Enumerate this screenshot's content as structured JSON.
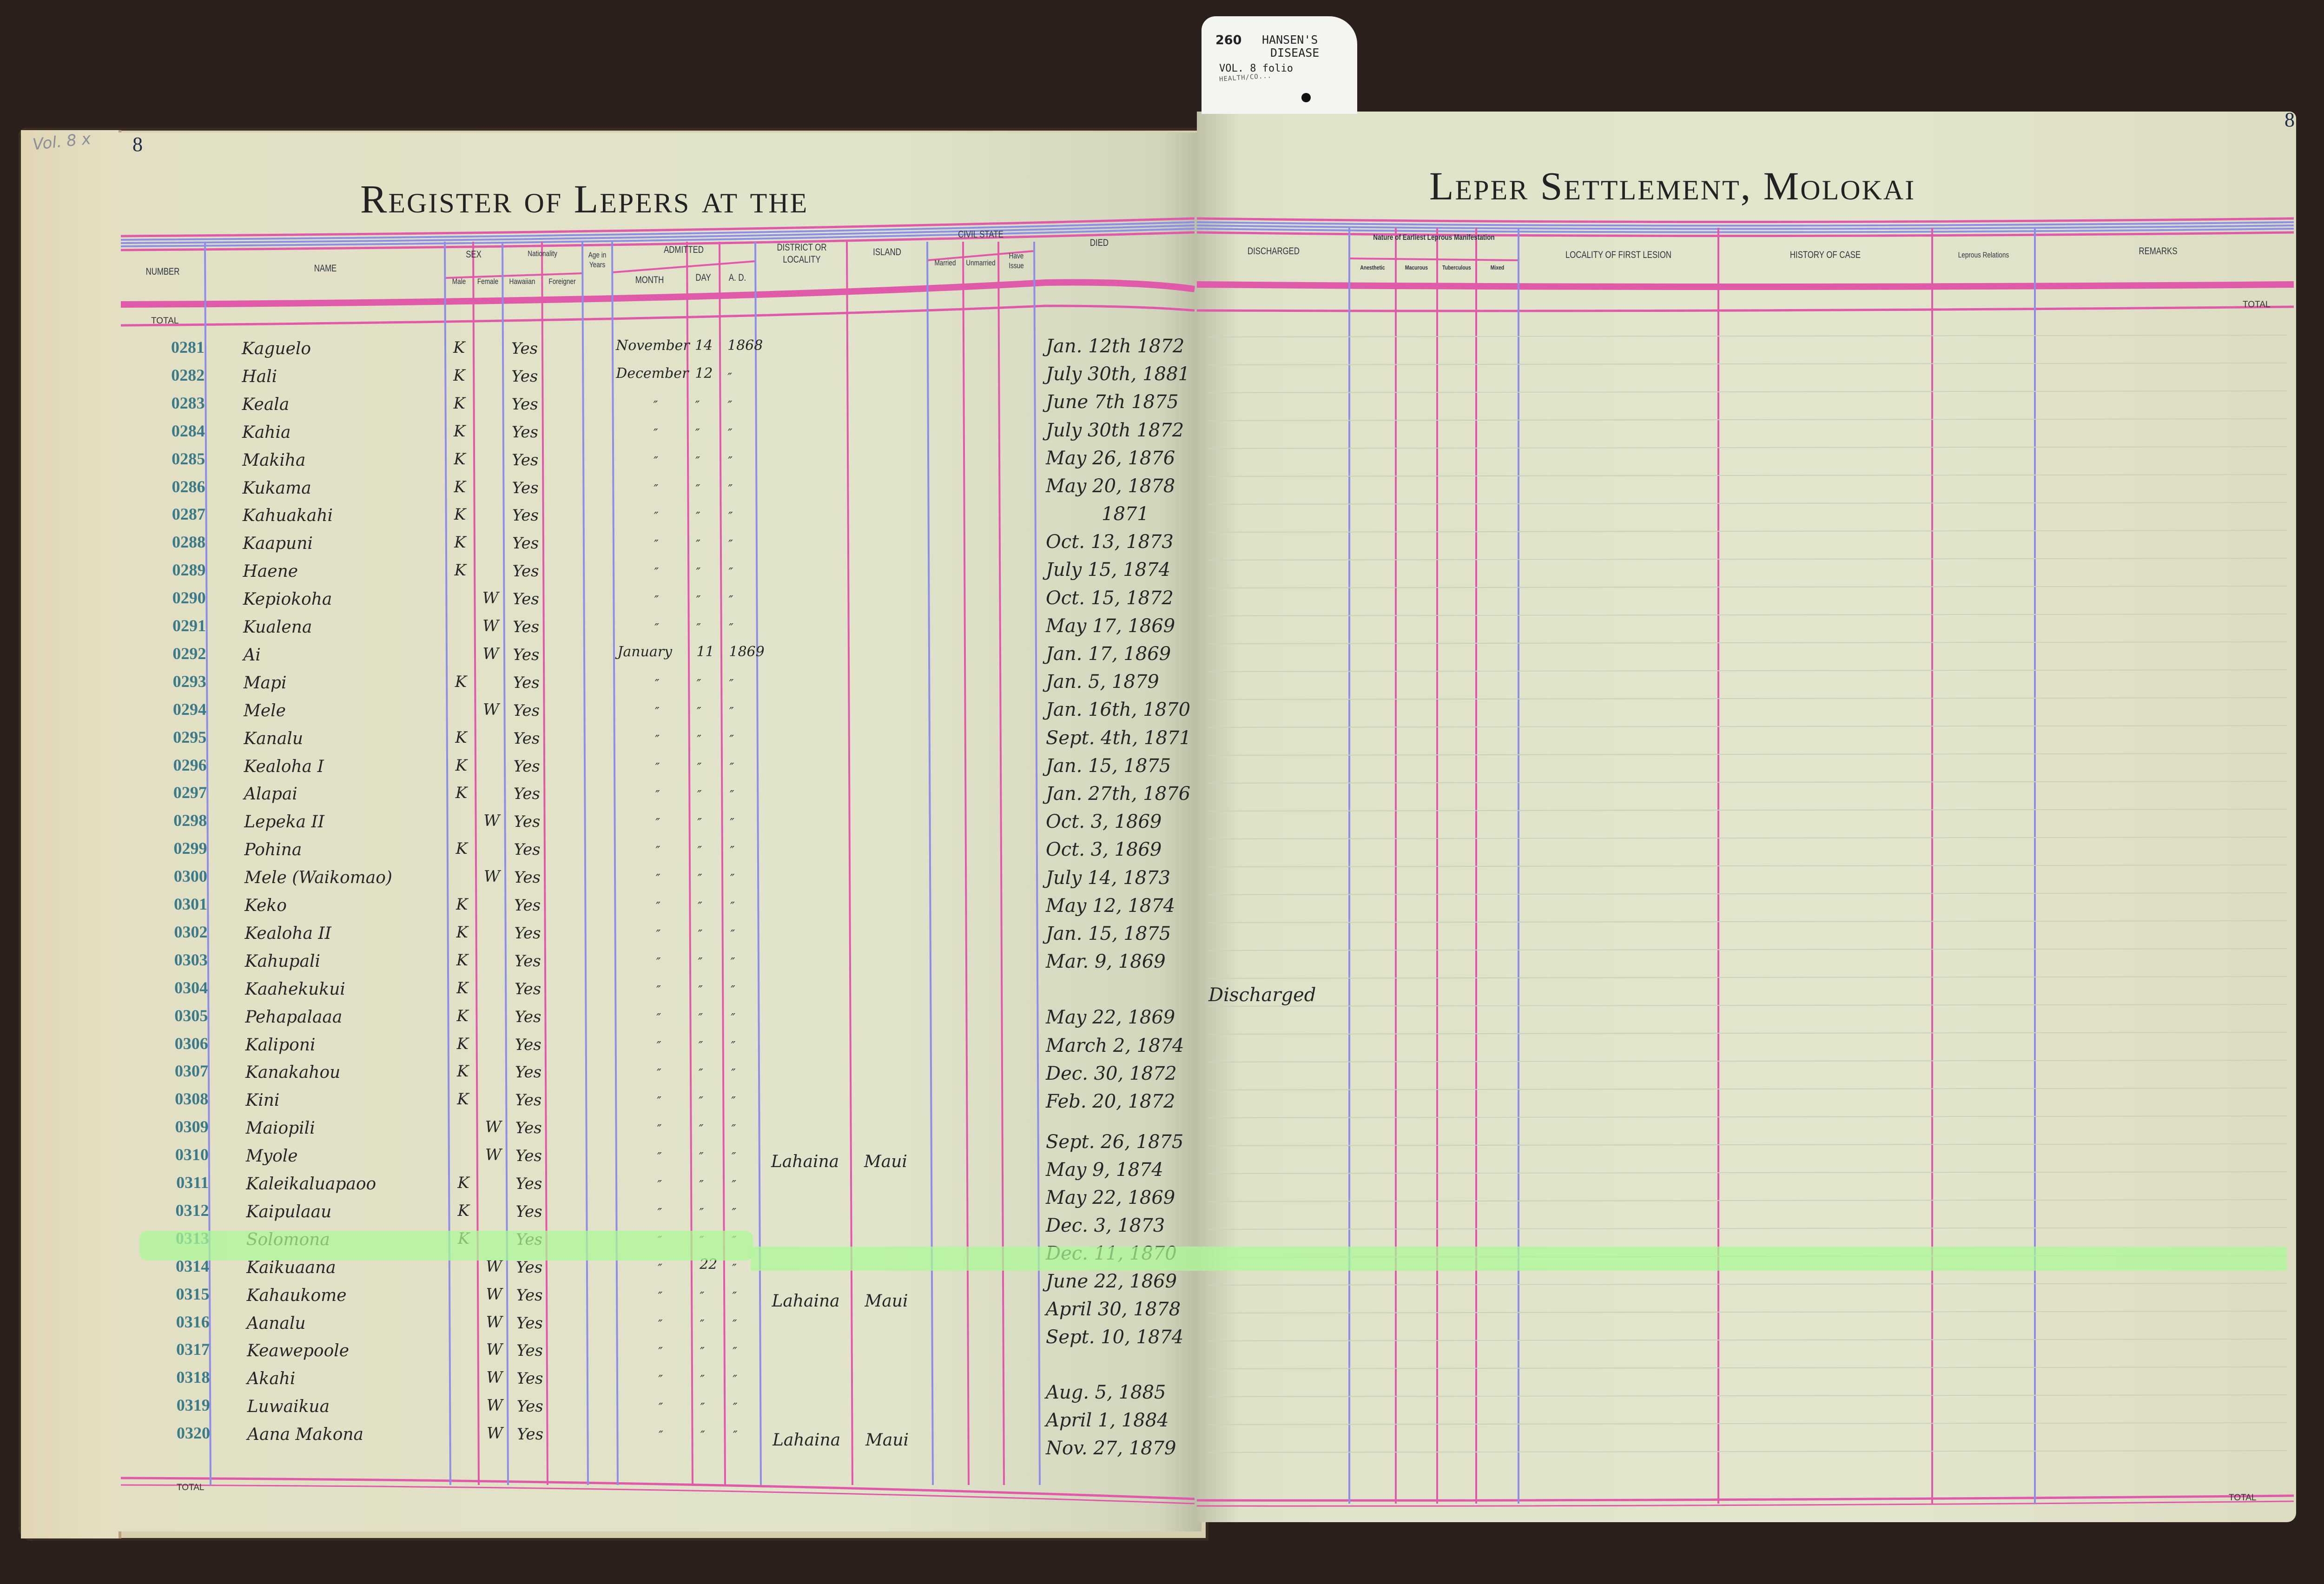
{
  "tag": {
    "number": "260",
    "title_line1": "HANSEN'S",
    "title_line2": "DISEASE",
    "volume": "VOL. 8 folio",
    "department": "HEALTH/CO..."
  },
  "margin_note": "Vol. 8 x",
  "left_page": {
    "page_number": "8",
    "title": "Register of Lepers at the",
    "headers": {
      "number": "Number",
      "name": "Name",
      "sex": "Sex",
      "male": "Male",
      "female": "Female",
      "nationality": "Nationality",
      "hawaiian": "Hawaiian",
      "foreigner": "Foreigner",
      "age": "Age in Years",
      "admitted": "Admitted",
      "month": "Month",
      "day": "Day",
      "ad": "A. D.",
      "district": "District or Locality",
      "island": "Island",
      "civil_state": "Civil State",
      "married": "Married",
      "unmarried": "Unmarried",
      "have_issue": "Have Issue",
      "died": "Died"
    },
    "total_top": "TOTAL",
    "total_bottom": "TOTAL"
  },
  "right_page": {
    "page_number": "8",
    "title": "Leper Settlement, Molokai",
    "headers": {
      "discharged": "Discharged",
      "nature": "Nature of Earliest Leprous Manifestation",
      "anesthetic": "Anesthetic",
      "macurous": "Macurous",
      "tuberculous": "Tuberculous",
      "mixed": "Mixed",
      "locality": "Locality of First Lesion",
      "history": "History of Case",
      "relations": "Leprous Relations",
      "remarks": "Remarks"
    },
    "total_top": "TOTAL",
    "total_bottom": "TOTAL"
  },
  "highlighted_row": "0313",
  "rows": [
    {
      "number": "0281",
      "name": "Kaguelo",
      "male": "K",
      "female": "",
      "hawaiian": "Yes",
      "month": "November",
      "day": "14",
      "ad": "1868",
      "district": "",
      "island": "",
      "died": "Jan. 12th 1872",
      "discharged": ""
    },
    {
      "number": "0282",
      "name": "Hali",
      "male": "K",
      "female": "",
      "hawaiian": "Yes",
      "month": "December",
      "day": "12",
      "ad": "″",
      "district": "",
      "island": "",
      "died": "July 30th, 1881",
      "discharged": ""
    },
    {
      "number": "0283",
      "name": "Keala",
      "male": "K",
      "female": "",
      "hawaiian": "Yes",
      "month": "″",
      "day": "″",
      "ad": "″",
      "district": "",
      "island": "",
      "died": "June 7th 1875",
      "discharged": ""
    },
    {
      "number": "0284",
      "name": "Kahia",
      "male": "K",
      "female": "",
      "hawaiian": "Yes",
      "month": "″",
      "day": "″",
      "ad": "″",
      "district": "",
      "island": "",
      "died": "July 30th 1872",
      "discharged": ""
    },
    {
      "number": "0285",
      "name": "Makiha",
      "male": "K",
      "female": "",
      "hawaiian": "Yes",
      "month": "″",
      "day": "″",
      "ad": "″",
      "district": "",
      "island": "",
      "died": "May 26, 1876",
      "discharged": ""
    },
    {
      "number": "0286",
      "name": "Kukama",
      "male": "K",
      "female": "",
      "hawaiian": "Yes",
      "month": "″",
      "day": "″",
      "ad": "″",
      "district": "",
      "island": "",
      "died": "May 20, 1878",
      "discharged": ""
    },
    {
      "number": "0287",
      "name": "Kahuakahi",
      "male": "K",
      "female": "",
      "hawaiian": "Yes",
      "month": "″",
      "day": "″",
      "ad": "″",
      "district": "",
      "island": "",
      "died": "1871",
      "discharged": ""
    },
    {
      "number": "0288",
      "name": "Kaapuni",
      "male": "K",
      "female": "",
      "hawaiian": "Yes",
      "month": "″",
      "day": "″",
      "ad": "″",
      "district": "",
      "island": "",
      "died": "Oct. 13, 1873",
      "discharged": ""
    },
    {
      "number": "0289",
      "name": "Haene",
      "male": "K",
      "female": "",
      "hawaiian": "Yes",
      "month": "″",
      "day": "″",
      "ad": "″",
      "district": "",
      "island": "",
      "died": "July 15, 1874",
      "discharged": ""
    },
    {
      "number": "0290",
      "name": "Kepiokoha",
      "male": "",
      "female": "W",
      "hawaiian": "Yes",
      "month": "″",
      "day": "″",
      "ad": "″",
      "district": "",
      "island": "",
      "died": "Oct. 15, 1872",
      "discharged": ""
    },
    {
      "number": "0291",
      "name": "Kualena",
      "male": "",
      "female": "W",
      "hawaiian": "Yes",
      "month": "″",
      "day": "″",
      "ad": "″",
      "district": "",
      "island": "",
      "died": "May 17, 1869",
      "discharged": ""
    },
    {
      "number": "0292",
      "name": "Ai",
      "male": "",
      "female": "W",
      "hawaiian": "Yes",
      "month": "January",
      "day": "11",
      "ad": "1869",
      "district": "",
      "island": "",
      "died": "Jan. 17, 1869",
      "discharged": ""
    },
    {
      "number": "0293",
      "name": "Mapi",
      "male": "K",
      "female": "",
      "hawaiian": "Yes",
      "month": "″",
      "day": "″",
      "ad": "″",
      "district": "",
      "island": "",
      "died": "Jan. 5, 1879",
      "discharged": ""
    },
    {
      "number": "0294",
      "name": "Mele",
      "male": "",
      "female": "W",
      "hawaiian": "Yes",
      "month": "″",
      "day": "″",
      "ad": "″",
      "district": "",
      "island": "",
      "died": "Jan. 16th, 1870",
      "discharged": ""
    },
    {
      "number": "0295",
      "name": "Kanalu",
      "male": "K",
      "female": "",
      "hawaiian": "Yes",
      "month": "″",
      "day": "″",
      "ad": "″",
      "district": "",
      "island": "",
      "died": "Sept. 4th, 1871",
      "discharged": ""
    },
    {
      "number": "0296",
      "name": "Kealoha I",
      "male": "K",
      "female": "",
      "hawaiian": "Yes",
      "month": "″",
      "day": "″",
      "ad": "″",
      "district": "",
      "island": "",
      "died": "Jan. 15, 1875",
      "discharged": ""
    },
    {
      "number": "0297",
      "name": "Alapai",
      "male": "K",
      "female": "",
      "hawaiian": "Yes",
      "month": "″",
      "day": "″",
      "ad": "″",
      "district": "",
      "island": "",
      "died": "Jan. 27th, 1876",
      "discharged": ""
    },
    {
      "number": "0298",
      "name": "Lepeka II",
      "male": "",
      "female": "W",
      "hawaiian": "Yes",
      "month": "″",
      "day": "″",
      "ad": "″",
      "district": "",
      "island": "",
      "died": "Oct. 3, 1869",
      "discharged": ""
    },
    {
      "number": "0299",
      "name": "Pohina",
      "male": "K",
      "female": "",
      "hawaiian": "Yes",
      "month": "″",
      "day": "″",
      "ad": "″",
      "district": "",
      "island": "",
      "died": "Oct. 3, 1869",
      "discharged": ""
    },
    {
      "number": "0300",
      "name": "Mele (Waikomao)",
      "male": "",
      "female": "W",
      "hawaiian": "Yes",
      "month": "″",
      "day": "″",
      "ad": "″",
      "district": "",
      "island": "",
      "died": "July 14, 1873",
      "discharged": ""
    },
    {
      "number": "0301",
      "name": "Keko",
      "male": "K",
      "female": "",
      "hawaiian": "Yes",
      "month": "″",
      "day": "″",
      "ad": "″",
      "district": "",
      "island": "",
      "died": "May 12, 1874",
      "discharged": ""
    },
    {
      "number": "0302",
      "name": "Kealoha II",
      "male": "K",
      "female": "",
      "hawaiian": "Yes",
      "month": "″",
      "day": "″",
      "ad": "″",
      "district": "",
      "island": "",
      "died": "Jan. 15, 1875",
      "discharged": ""
    },
    {
      "number": "0303",
      "name": "Kahupali",
      "male": "K",
      "female": "",
      "hawaiian": "Yes",
      "month": "″",
      "day": "″",
      "ad": "″",
      "district": "",
      "island": "",
      "died": "Mar. 9, 1869",
      "discharged": ""
    },
    {
      "number": "0304",
      "name": "Kaahekukui",
      "male": "K",
      "female": "",
      "hawaiian": "Yes",
      "month": "″",
      "day": "″",
      "ad": "″",
      "district": "",
      "island": "",
      "died": "",
      "discharged": "Discharged"
    },
    {
      "number": "0305",
      "name": "Pehapalaaa",
      "male": "K",
      "female": "",
      "hawaiian": "Yes",
      "month": "″",
      "day": "″",
      "ad": "″",
      "district": "",
      "island": "",
      "died": "May 22, 1869",
      "discharged": ""
    },
    {
      "number": "0306",
      "name": "Kaliponi",
      "male": "K",
      "female": "",
      "hawaiian": "Yes",
      "month": "″",
      "day": "″",
      "ad": "″",
      "district": "",
      "island": "",
      "died": "March 2, 1874",
      "discharged": ""
    },
    {
      "number": "0307",
      "name": "Kanakahou",
      "male": "K",
      "female": "",
      "hawaiian": "Yes",
      "month": "″",
      "day": "″",
      "ad": "″",
      "district": "",
      "island": "",
      "died": "Dec. 30, 1872",
      "discharged": ""
    },
    {
      "number": "0308",
      "name": "Kini",
      "male": "K",
      "female": "",
      "hawaiian": "Yes",
      "month": "″",
      "day": "″",
      "ad": "″",
      "district": "",
      "island": "",
      "died": "Feb. 20, 1872",
      "discharged": ""
    },
    {
      "number": "0309",
      "name": "Maiopili",
      "male": "",
      "female": "W",
      "hawaiian": "Yes",
      "month": "″",
      "day": "″",
      "ad": "″",
      "district": "",
      "island": "",
      "died": "Sept. 26, 1875",
      "discharged": ""
    },
    {
      "number": "0310",
      "name": "Myole",
      "male": "",
      "female": "W",
      "hawaiian": "Yes",
      "month": "″",
      "day": "″",
      "ad": "″",
      "district": "Lahaina",
      "island": "Maui",
      "died": "May 9, 1874",
      "discharged": ""
    },
    {
      "number": "0311",
      "name": "Kaleikaluapaoo",
      "male": "K",
      "female": "",
      "hawaiian": "Yes",
      "month": "″",
      "day": "″",
      "ad": "″",
      "district": "",
      "island": "",
      "died": "May 22, 1869",
      "discharged": ""
    },
    {
      "number": "0312",
      "name": "Kaipulaau",
      "male": "K",
      "female": "",
      "hawaiian": "Yes",
      "month": "″",
      "day": "″",
      "ad": "″",
      "district": "",
      "island": "",
      "died": "Dec. 3, 1873",
      "discharged": ""
    },
    {
      "number": "0313",
      "name": "Solomona",
      "male": "K",
      "female": "",
      "hawaiian": "Yes",
      "month": "″",
      "day": "″",
      "ad": "″",
      "district": "",
      "island": "",
      "died": "Dec. 11, 1870",
      "discharged": ""
    },
    {
      "number": "0314",
      "name": "Kaikuaana",
      "male": "",
      "female": "W",
      "hawaiian": "Yes",
      "month": "″",
      "day": "22",
      "ad": "″",
      "district": "",
      "island": "",
      "died": "June 22, 1869",
      "discharged": ""
    },
    {
      "number": "0315",
      "name": "Kahaukome",
      "male": "",
      "female": "W",
      "hawaiian": "Yes",
      "month": "″",
      "day": "″",
      "ad": "″",
      "district": "Lahaina",
      "island": "Maui",
      "died": "April 30, 1878",
      "discharged": ""
    },
    {
      "number": "0316",
      "name": "Aanalu",
      "male": "",
      "female": "W",
      "hawaiian": "Yes",
      "month": "″",
      "day": "″",
      "ad": "″",
      "district": "",
      "island": "",
      "died": "Sept. 10, 1874",
      "discharged": ""
    },
    {
      "number": "0317",
      "name": "Keawepoole",
      "male": "",
      "female": "W",
      "hawaiian": "Yes",
      "month": "″",
      "day": "″",
      "ad": "″",
      "district": "",
      "island": "",
      "died": "",
      "discharged": ""
    },
    {
      "number": "0318",
      "name": "Akahi",
      "male": "",
      "female": "W",
      "hawaiian": "Yes",
      "month": "″",
      "day": "″",
      "ad": "″",
      "district": "",
      "island": "",
      "died": "Aug. 5, 1885",
      "discharged": ""
    },
    {
      "number": "0319",
      "name": "Luwaikua",
      "male": "",
      "female": "W",
      "hawaiian": "Yes",
      "month": "″",
      "day": "″",
      "ad": "″",
      "district": "",
      "island": "",
      "died": "April 1, 1884",
      "discharged": ""
    },
    {
      "number": "0320",
      "name": "Aana Makona",
      "male": "",
      "female": "W",
      "hawaiian": "Yes",
      "month": "″",
      "day": "″",
      "ad": "″",
      "district": "Lahaina",
      "island": "Maui",
      "died": "Nov. 27, 1879",
      "discharged": ""
    }
  ],
  "colors": {
    "paper": "#e1e4cb",
    "rule_blue": "#8d8ee6",
    "rule_pink": "#e05aaa",
    "number_ink": "#3c7a88",
    "highlight": "#aafa96"
  }
}
